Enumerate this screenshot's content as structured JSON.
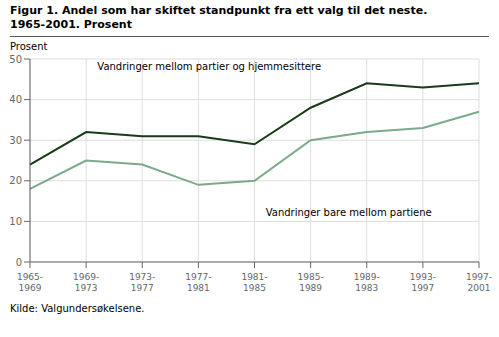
{
  "chart_data": {
    "type": "line",
    "title": "Figur 1. Andel som har skiftet standpunkt fra ett valg til det neste.",
    "subtitle": "1965-2001. Prosent",
    "y_label": "Prosent",
    "note": "Kilde: Valgundersøkelsene.",
    "categories": [
      "1965-\n1969",
      "1969-\n1973",
      "1973-\n1977",
      "1977-\n1981",
      "1981-\n1985",
      "1985-\n1989",
      "1989-\n1983",
      "1993-\n1997",
      "1997-\n2001"
    ],
    "series": [
      {
        "name": "Vandringer mellom partier og hjemmesittere",
        "color": "#1a3a1a",
        "values": [
          24,
          32,
          31,
          31,
          29,
          38,
          44,
          43,
          44
        ]
      },
      {
        "name": "Vandringer bare mellom partiene",
        "color": "#7aaa8a",
        "values": [
          18,
          25,
          24,
          19,
          20,
          30,
          32,
          33,
          37
        ]
      }
    ],
    "ylim": [
      0,
      50
    ],
    "yticks": [
      0,
      10,
      20,
      30,
      40,
      50
    ],
    "grid": true
  }
}
